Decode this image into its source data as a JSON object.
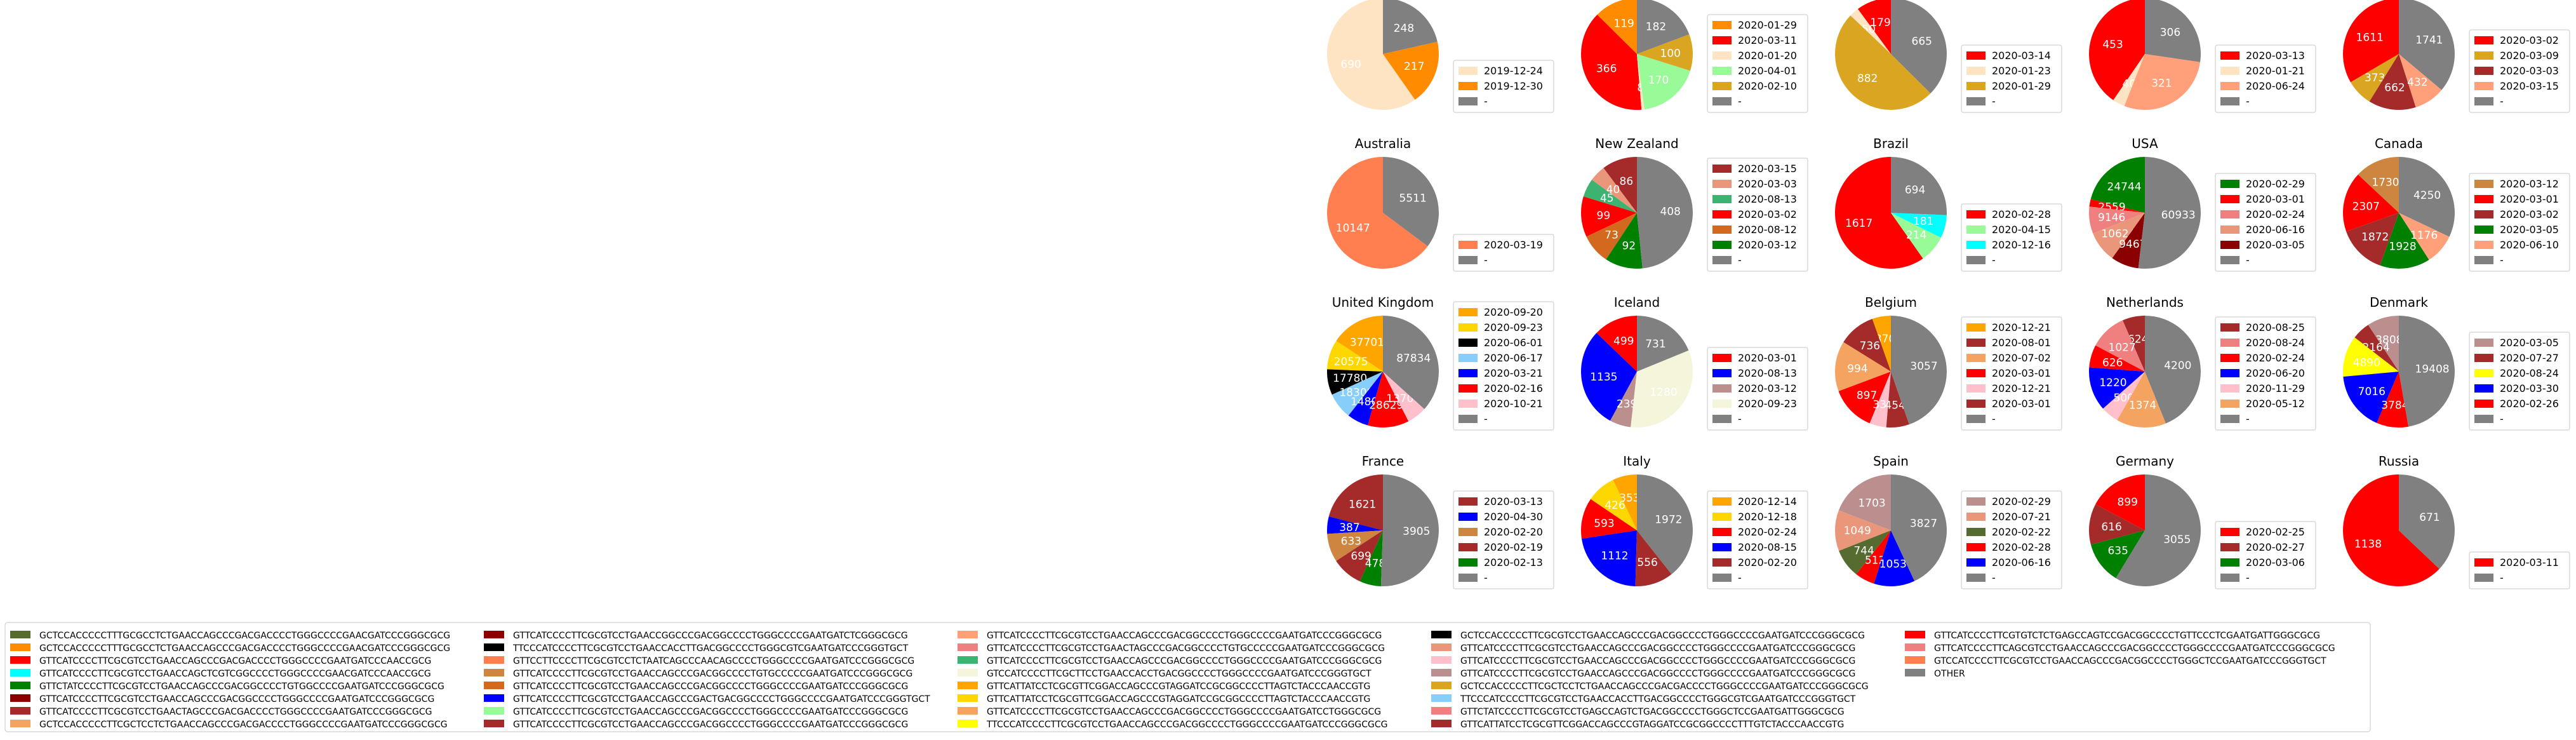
{
  "chart_data": {
    "type": "pie",
    "colors": {
      "other": "#808080",
      "bisque": "#FFE4C4",
      "darkorange": "#FF8C00",
      "red": "#FF0000",
      "palegreen": "#98FB98",
      "goldenrod": "#DAA520",
      "lightsalmon": "#FFA07A",
      "brown": "#A52A2A",
      "coral": "#FF7F50",
      "darkred": "#8B0000",
      "darksalmon": "#E9967A",
      "mediumseagreen": "#3CB371",
      "chocolate": "#D2691E",
      "green": "#008000",
      "aqua": "#00FFFF",
      "lightcoral": "#F08080",
      "peru": "#CD853F",
      "orange": "#FFA500",
      "gold": "#FFD700",
      "black": "#000000",
      "lightskyblue": "#87CEFA",
      "blue": "#0000FF",
      "pink": "#FFC0CB",
      "beige": "#F5F5DC",
      "sandybrown": "#F4A460",
      "yellow": "#FFFF00",
      "rosybrown": "#BC8F8F",
      "darkolivegreen": "#556B2F"
    },
    "pies": [
      {
        "title": "Mainland China",
        "slices": [
          {
            "label": "2019-12-24",
            "value": 690,
            "color": "bisque"
          },
          {
            "label": "2019-12-30",
            "value": 217,
            "color": "darkorange"
          },
          {
            "label": "-",
            "value": 248,
            "color": "other"
          }
        ]
      },
      {
        "title": "Japan",
        "slices": [
          {
            "label": "2020-01-29",
            "value": 119,
            "color": "darkorange"
          },
          {
            "label": "2020-03-11",
            "value": 366,
            "color": "red"
          },
          {
            "label": "2020-01-20",
            "value": 8,
            "color": "bisque"
          },
          {
            "label": "2020-04-01",
            "value": 170,
            "color": "palegreen"
          },
          {
            "label": "2020-02-10",
            "value": 100,
            "color": "goldenrod"
          },
          {
            "label": "-",
            "value": 182,
            "color": "other"
          }
        ]
      },
      {
        "title": "Singapore",
        "slices": [
          {
            "label": "2020-03-14",
            "value": 179,
            "color": "red"
          },
          {
            "label": "2020-01-23",
            "value": 50,
            "color": "bisque"
          },
          {
            "label": "2020-01-29",
            "value": 882,
            "color": "goldenrod"
          },
          {
            "label": "-",
            "value": 665,
            "color": "other"
          }
        ]
      },
      {
        "title": "Hong Kong",
        "slices": [
          {
            "label": "2020-03-13",
            "value": 453,
            "color": "red"
          },
          {
            "label": "2020-01-21",
            "value": 40,
            "color": "bisque"
          },
          {
            "label": "2020-06-24",
            "value": 321,
            "color": "lightsalmon"
          },
          {
            "label": "-",
            "value": 306,
            "color": "other"
          }
        ]
      },
      {
        "title": "India",
        "slices": [
          {
            "label": "2020-03-02",
            "value": 1611,
            "color": "red"
          },
          {
            "label": "2020-03-09",
            "value": 373,
            "color": "goldenrod"
          },
          {
            "label": "2020-03-03",
            "value": 662,
            "color": "brown"
          },
          {
            "label": "2020-03-15",
            "value": 432,
            "color": "lightsalmon"
          },
          {
            "label": "-",
            "value": 1741,
            "color": "other"
          }
        ]
      },
      {
        "title": "Australia",
        "slices": [
          {
            "label": "2020-03-19",
            "value": 10147,
            "color": "coral"
          },
          {
            "label": "-",
            "value": 5511,
            "color": "other"
          }
        ]
      },
      {
        "title": "New Zealand",
        "slices": [
          {
            "label": "2020-03-15",
            "value": 86,
            "color": "brown"
          },
          {
            "label": "2020-03-03",
            "value": 40,
            "color": "darksalmon"
          },
          {
            "label": "2020-08-13",
            "value": 45,
            "color": "mediumseagreen"
          },
          {
            "label": "2020-03-02",
            "value": 99,
            "color": "red"
          },
          {
            "label": "2020-08-12",
            "value": 73,
            "color": "chocolate"
          },
          {
            "label": "2020-03-12",
            "value": 92,
            "color": "green"
          },
          {
            "label": "-",
            "value": 408,
            "color": "other"
          }
        ]
      },
      {
        "title": "Brazil",
        "slices": [
          {
            "label": "2020-02-28",
            "value": 1617,
            "color": "red"
          },
          {
            "label": "2020-04-15",
            "value": 214,
            "color": "palegreen"
          },
          {
            "label": "2020-12-16",
            "value": 181,
            "color": "aqua"
          },
          {
            "label": "-",
            "value": 694,
            "color": "other"
          }
        ]
      },
      {
        "title": "USA",
        "slices": [
          {
            "label": "2020-02-29",
            "value": 24744,
            "color": "green"
          },
          {
            "label": "2020-03-01",
            "value": 2559,
            "color": "red"
          },
          {
            "label": "2020-02-24",
            "value": 9146,
            "color": "lightcoral"
          },
          {
            "label": "2020-06-16",
            "value": 10624,
            "color": "darksalmon"
          },
          {
            "label": "2020-03-05",
            "value": 9467,
            "color": "darkred"
          },
          {
            "label": "-",
            "value": 60933,
            "color": "other"
          }
        ]
      },
      {
        "title": "Canada",
        "slices": [
          {
            "label": "2020-03-12",
            "value": 1730,
            "color": "peru"
          },
          {
            "label": "2020-03-01",
            "value": 2307,
            "color": "red"
          },
          {
            "label": "2020-03-02",
            "value": 1872,
            "color": "brown"
          },
          {
            "label": "2020-03-05",
            "value": 1928,
            "color": "green"
          },
          {
            "label": "2020-06-10",
            "value": 1176,
            "color": "lightsalmon"
          },
          {
            "label": "-",
            "value": 4250,
            "color": "other"
          }
        ]
      },
      {
        "title": "United Kingdom",
        "slices": [
          {
            "label": "2020-09-20",
            "value": 37701,
            "color": "orange"
          },
          {
            "label": "2020-09-23",
            "value": 20575,
            "color": "gold"
          },
          {
            "label": "2020-06-01",
            "value": 17780,
            "color": "black"
          },
          {
            "label": "2020-06-17",
            "value": 18309,
            "color": "lightskyblue"
          },
          {
            "label": "2020-03-21",
            "value": 14808,
            "color": "blue"
          },
          {
            "label": "2020-02-16",
            "value": 28629,
            "color": "red"
          },
          {
            "label": "2020-10-21",
            "value": 13707,
            "color": "pink"
          },
          {
            "label": "-",
            "value": 87834,
            "color": "other"
          }
        ]
      },
      {
        "title": "Iceland",
        "slices": [
          {
            "label": "2020-03-01",
            "value": 499,
            "color": "red"
          },
          {
            "label": "2020-08-13",
            "value": 1135,
            "color": "blue"
          },
          {
            "label": "2020-03-12",
            "value": 239,
            "color": "rosybrown"
          },
          {
            "label": "2020-09-23",
            "value": 1280,
            "color": "beige"
          },
          {
            "label": "-",
            "value": 731,
            "color": "other"
          }
        ]
      },
      {
        "title": "Belgium",
        "slices": [
          {
            "label": "2020-12-21",
            "value": 370,
            "color": "orange"
          },
          {
            "label": "2020-08-01",
            "value": 736,
            "color": "brown"
          },
          {
            "label": "2020-07-02",
            "value": 994,
            "color": "sandybrown"
          },
          {
            "label": "2020-03-01",
            "value": 897,
            "color": "red"
          },
          {
            "label": "2020-12-21",
            "value": 333,
            "color": "pink"
          },
          {
            "label": "2020-03-01",
            "value": 454,
            "color": "brown"
          },
          {
            "label": "-",
            "value": 3057,
            "color": "other"
          }
        ]
      },
      {
        "title": "Netherlands",
        "slices": [
          {
            "label": "2020-08-25",
            "value": 624,
            "color": "brown"
          },
          {
            "label": "2020-08-24",
            "value": 1027,
            "color": "lightcoral"
          },
          {
            "label": "2020-02-24",
            "value": 626,
            "color": "red"
          },
          {
            "label": "2020-06-20",
            "value": 1220,
            "color": "blue"
          },
          {
            "label": "2020-11-29",
            "value": 500,
            "color": "pink"
          },
          {
            "label": "2020-05-12",
            "value": 1374,
            "color": "sandybrown"
          },
          {
            "label": "-",
            "value": 4200,
            "color": "other"
          }
        ]
      },
      {
        "title": "Denmark",
        "slices": [
          {
            "label": "2020-03-05",
            "value": 3808,
            "color": "rosybrown"
          },
          {
            "label": "2020-07-27",
            "value": 2164,
            "color": "brown"
          },
          {
            "label": "2020-08-24",
            "value": 4890,
            "color": "yellow"
          },
          {
            "label": "2020-03-30",
            "value": 7016,
            "color": "blue"
          },
          {
            "label": "2020-02-26",
            "value": 3784,
            "color": "red"
          },
          {
            "label": "-",
            "value": 19408,
            "color": "other"
          }
        ]
      },
      {
        "title": "France",
        "slices": [
          {
            "label": "2020-03-13",
            "value": 1621,
            "color": "brown"
          },
          {
            "label": "2020-04-30",
            "value": 387,
            "color": "blue"
          },
          {
            "label": "2020-02-20",
            "value": 633,
            "color": "peru"
          },
          {
            "label": "2020-02-19",
            "value": 699,
            "color": "brown"
          },
          {
            "label": "2020-02-13",
            "value": 478,
            "color": "green"
          },
          {
            "label": "-",
            "value": 3905,
            "color": "other"
          }
        ]
      },
      {
        "title": "Italy",
        "slices": [
          {
            "label": "2020-12-14",
            "value": 353,
            "color": "orange"
          },
          {
            "label": "2020-12-18",
            "value": 426,
            "color": "gold"
          },
          {
            "label": "2020-02-24",
            "value": 593,
            "color": "red"
          },
          {
            "label": "2020-08-15",
            "value": 1112,
            "color": "blue"
          },
          {
            "label": "2020-02-20",
            "value": 556,
            "color": "brown"
          },
          {
            "label": "-",
            "value": 1972,
            "color": "other"
          }
        ]
      },
      {
        "title": "Spain",
        "slices": [
          {
            "label": "2020-02-29",
            "value": 1703,
            "color": "rosybrown"
          },
          {
            "label": "2020-07-21",
            "value": 1049,
            "color": "darksalmon"
          },
          {
            "label": "2020-02-22",
            "value": 744,
            "color": "darkolivegreen"
          },
          {
            "label": "2020-02-28",
            "value": 512,
            "color": "red"
          },
          {
            "label": "2020-06-16",
            "value": 1053,
            "color": "blue"
          },
          {
            "label": "-",
            "value": 3827,
            "color": "other"
          }
        ]
      },
      {
        "title": "Germany",
        "slices": [
          {
            "label": "2020-02-25",
            "value": 899,
            "color": "red"
          },
          {
            "label": "2020-02-27",
            "value": 616,
            "color": "brown"
          },
          {
            "label": "2020-03-06",
            "value": 635,
            "color": "green"
          },
          {
            "label": "-",
            "value": 3055,
            "color": "other"
          }
        ]
      },
      {
        "title": "Russia",
        "slices": [
          {
            "label": "2020-03-11",
            "value": 1138,
            "color": "red"
          },
          {
            "label": "-",
            "value": 671,
            "color": "other"
          }
        ]
      }
    ],
    "legend": [
      {
        "label": "GCTCCACCCCCTTTGCGCCTCTGAACCAGCCCGACGACCCCTGGGCCCCGAACGATCCCGGGCGCG",
        "color": "darkolivegreen"
      },
      {
        "label": "GCTCCACCCCCTTTGCGCCTCTGAACCAGCCCGACGACCCCTGGGCCCCGAACGATCCCGGGCGCG",
        "color": "darkorange"
      },
      {
        "label": "GTTCATCCCCTTCGCGTCCTGAACCAGCCCGACGACCCCTGGGCCCCGAATGATCCCAACCGCG",
        "color": "red"
      },
      {
        "label": "GTTCATCCCCTTCGCGTCCTGAACCAGCTCGTCGGCCCCTGGGCCCCGAACGATCCCAACCGCG",
        "color": "aqua"
      },
      {
        "label": "GTTCTATCCCCTTCGCGTCCTGAACCAGCCCGACGGCCCCTGTGGCCCCGAATGATCCCGGGCGCG",
        "color": "green"
      },
      {
        "label": "GTTCATCCCCTTCGCGTCCTGAACCAGCCCGACGGCCCCTGGGCCCCGAATGATCCCGGGCGCG",
        "color": "darkred"
      },
      {
        "label": "GTTCATCCCCTTCGCGTCCTGAACTAGCCCGACGACCCCTGGGCCCCGAATGATCCCGGGCGCG",
        "color": "brown"
      },
      {
        "label": "GCTCCACCCCCTTCGCTCCTCTGAACCAGCCCGACGACCCCTGGGCCCCGAATGATCCCGGGCGCG",
        "color": "sandybrown"
      },
      {
        "label": "GTTCATCCCCTTCGCGTCCTGAACCGGCCCGACGGCCCCTGGGCCCCGAATGATCTCGGGCGCG",
        "color": "darkred"
      },
      {
        "label": "TTCCCATCCCCTTCGCGTCCTGAACCACCTTGACGGCCCCTGGGCGTCGAATGATCCCGGGTGCT",
        "color": "black"
      },
      {
        "label": "GTTCCTTCCCCTTCGCGTCCTCTAATCAGCCCAACAGCCCCTGGGCCCCGAATGATCCCGGGCGCG",
        "color": "coral"
      },
      {
        "label": "GTTCATCCCCTTCGCGTCCTGAACCAGCCCGACGGCCCCTGTGCCCCCGAATGATCCCGGGCGCG",
        "color": "peru"
      },
      {
        "label": "GTTCATCCCCTTCGCGTCCTGAACCAGCCCGACGGCCCCTGGGCCCCGAATGATCCCGGGCGCG",
        "color": "chocolate"
      },
      {
        "label": "GTTCATCCCCTTCGCGTCCTGAACCAGCCCGACTGACGGCCCCTGGGCCCCGAATGATCCCGGGTGCT",
        "color": "blue"
      },
      {
        "label": "GTTCATCCCCTTCGCGTCCTGAACCAGCCCGACGGCCCCTGGGCCCCGAATGATCCCGGGCGCG",
        "color": "palegreen"
      },
      {
        "label": "GTTCATCCCCTTCGCGTCCTGAACCAGCCCGACGGCCCCTGGGCCCCGAATGATCCCGGGCGCG",
        "color": "brown"
      },
      {
        "label": "GTTCATCCCCTTCGCGTCCTGAACCAGCCCGACGGCCCCTGGGCCCCGAATGATCCCGGGCGCG",
        "color": "lightsalmon"
      },
      {
        "label": "GTTCATCCCCTTCGCGTCCTGAACTAGCCCGACGGCCCCTGTGCCCCCGAATGATCCCGGGCGCG",
        "color": "lightcoral"
      },
      {
        "label": "GTTCATCCCCTTCGCGTCCTGAACCAGCCCGACGGCCCCTGGGCCCCGAATGATCCCGGGCGCG",
        "color": "mediumseagreen"
      },
      {
        "label": "GTCCATCCCCTTCGCTTCCTGAACCACCTGACGGCCCCTGGGCCCCGAATGATCCCGGGTGCT",
        "color": "beige"
      },
      {
        "label": "GTTCATTATCCTCGCGTTCGGACCAGCCCGTAGGATCCGCGGCCCCTTAGTCTACCCAACCGTG",
        "color": "orange"
      },
      {
        "label": "GTTCATTATCCTCGCGTTCGGACCAGCCCGTAGGATCCGCGGCCCCTTAGTCTACCCAACCGTG",
        "color": "gold"
      },
      {
        "label": "GTTCATCCCCTTCGCGTCCTGAACCAGCCCGACGGCCCCTGGGCCCCGAATGATCCTGGGCGCG",
        "color": "sandybrown"
      },
      {
        "label": "TTCCCATCCCCTTCGCGTCCTGAACCAGCCCGACGGCCCCTGGGCCCCGAATGATCCCGGGCGCG",
        "color": "yellow"
      },
      {
        "label": "GCTCCACCCCCTTCGCGTCCTGAACCAGCCCGACGGCCCCTGGGCCCCGAATGATCCCGGGCGCG",
        "color": "black"
      },
      {
        "label": "GTTCATCCCCTTCGCGTCCTGAACCAGCCCGACGGCCCCTGGGCCCCGAATGATCCCGGGCGCG",
        "color": "darksalmon"
      },
      {
        "label": "GTTCATCCCCTTCGCGTCCTGAACCAGCCCGACGGCCCCTGGGCCCCGAATGATCCCGGGCGCG",
        "color": "pink"
      },
      {
        "label": "GTTCATCCCCTTCGCGTCCTGAACCAGCCCGACGGCCCCTGGGCCCCGAATGATCCCGGGCGCG",
        "color": "rosybrown"
      },
      {
        "label": "GCTCCACCCCCTTCGCTCCTCTGAACCAGCCCGACGACCCCTGGGCCCCGAATGATCCCGGGCGCG",
        "color": "goldenrod"
      },
      {
        "label": "TTCCCATCCCCTTCGCGTCCTGAACCACCTTGACGGCCCCTGGGCGTCGAATGATCCCGGGTGCT",
        "color": "lightskyblue"
      },
      {
        "label": "GTTCTATCCCCTTCGCGTCCTGAGCCAGTCTGACGGCCCCTGGGCTCCGAATGATTGGGCGCG",
        "color": "lightcoral"
      },
      {
        "label": "GTTCATTATCCTCGCGTTCGGACCAGCCCGTAGGATCCGCGGCCCCTTTGTCTACCCAACCGTG",
        "color": "brown"
      },
      {
        "label": "GTTCATCCCCTTCGTGTCTCTGAGCCAGTCCGACGGCCCCTGTTCCCTCGAATGATTGGGCGCG",
        "color": "red"
      },
      {
        "label": "GTTCATCCCCTTCAGCGTCCTGAACCAGCCCGACGGCCCCTGGGCCCCGAATGATCCCGGGCGCG",
        "color": "lightcoral"
      },
      {
        "label": "GTCCATCCCCTTCGCGTCCTGAACCAGCCCGACGGCCCCTGGGCTCCGAATGATCCCGGGTGCT",
        "color": "coral"
      },
      {
        "label": "OTHER",
        "color": "other"
      }
    ]
  }
}
